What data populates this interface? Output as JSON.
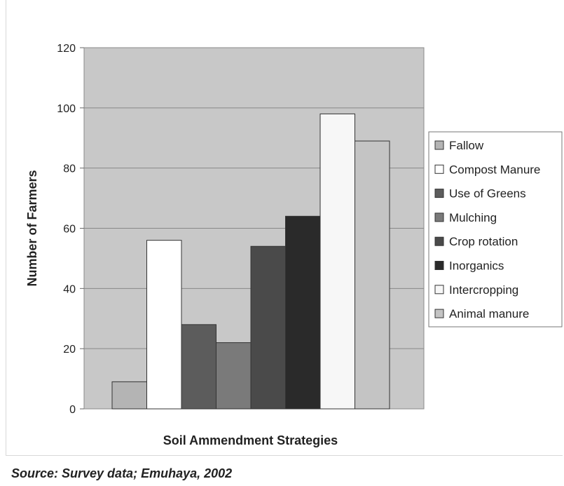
{
  "chart_data": {
    "type": "bar",
    "title": "",
    "xlabel": "Soil Ammendment Strategies",
    "ylabel": "Number of Farmers",
    "ylim": [
      0,
      120
    ],
    "yticks": [
      0,
      20,
      40,
      60,
      80,
      100,
      120
    ],
    "grid": true,
    "legend_position": "right",
    "series": [
      {
        "name": "Fallow",
        "value": 9,
        "color": "#b4b4b4"
      },
      {
        "name": "Compost Manure",
        "value": 56,
        "color": "#ffffff"
      },
      {
        "name": "Use of Greens",
        "value": 28,
        "color": "#5c5c5c"
      },
      {
        "name": "Mulching",
        "value": 22,
        "color": "#7a7a7a"
      },
      {
        "name": "Crop rotation",
        "value": 54,
        "color": "#4a4a4a"
      },
      {
        "name": "Inorganics",
        "value": 64,
        "color": "#2a2a2a"
      },
      {
        "name": "Intercropping",
        "value": 98,
        "color": "#f7f7f7"
      },
      {
        "name": "Animal manure",
        "value": 89,
        "color": "#c4c4c4"
      }
    ],
    "plot_background": "#c8c8c8"
  },
  "source": "Source: Survey data; Emuhaya, 2002"
}
